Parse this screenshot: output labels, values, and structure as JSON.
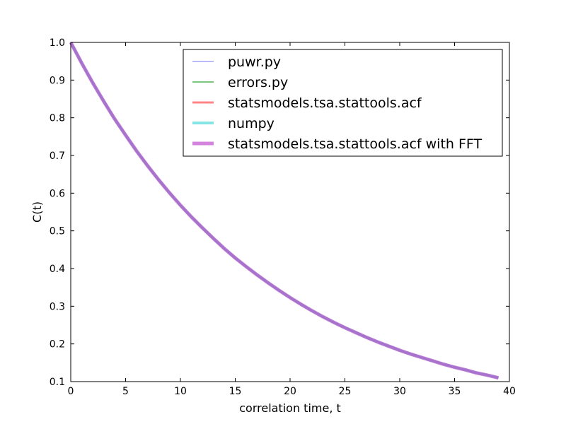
{
  "chart_data": {
    "type": "line",
    "title": "",
    "xlabel": "correlation time, t",
    "ylabel": "C(t)",
    "xlim": [
      0,
      40
    ],
    "ylim": [
      0.1,
      1.0
    ],
    "xticks": [
      "0",
      "5",
      "10",
      "15",
      "20",
      "25",
      "30",
      "35",
      "40"
    ],
    "yticks": [
      "0.1",
      "0.2",
      "0.3",
      "0.4",
      "0.5",
      "0.6",
      "0.7",
      "0.8",
      "0.9",
      "1.0"
    ],
    "grid": false,
    "legend_position": "top-right",
    "x": [
      0,
      1,
      2,
      3,
      4,
      5,
      6,
      7,
      8,
      9,
      10,
      11,
      12,
      13,
      14,
      15,
      16,
      17,
      18,
      19,
      20,
      21,
      22,
      23,
      24,
      25,
      26,
      27,
      28,
      29,
      30,
      31,
      32,
      33,
      34,
      35,
      36,
      37,
      38,
      39
    ],
    "series": [
      {
        "name": "puwr.py",
        "color": "#6666ee",
        "values": [
          1.0,
          0.945,
          0.893,
          0.844,
          0.797,
          0.754,
          0.712,
          0.673,
          0.636,
          0.601,
          0.568,
          0.537,
          0.508,
          0.48,
          0.453,
          0.428,
          0.405,
          0.383,
          0.362,
          0.342,
          0.323,
          0.305,
          0.288,
          0.272,
          0.257,
          0.243,
          0.23,
          0.217,
          0.205,
          0.194,
          0.183,
          0.173,
          0.164,
          0.155,
          0.146,
          0.138,
          0.131,
          0.123,
          0.117,
          0.11
        ]
      },
      {
        "name": "errors.py",
        "color": "#66bb66",
        "values": [
          1.0,
          0.945,
          0.893,
          0.844,
          0.797,
          0.754,
          0.712,
          0.673,
          0.636,
          0.601,
          0.568,
          0.537,
          0.508,
          0.48,
          0.453,
          0.428,
          0.405,
          0.383,
          0.362,
          0.342,
          0.323,
          0.305,
          0.288,
          0.272,
          0.257,
          0.243,
          0.23,
          0.217,
          0.205,
          0.194,
          0.183,
          0.173,
          0.164,
          0.155,
          0.146,
          0.138,
          0.131,
          0.123,
          0.117,
          0.11
        ]
      },
      {
        "name": "statsmodels.tsa.stattools.acf",
        "color": "#ff6666",
        "values": [
          1.0,
          0.945,
          0.893,
          0.844,
          0.797,
          0.754,
          0.712,
          0.673,
          0.636,
          0.601,
          0.568,
          0.537,
          0.508,
          0.48,
          0.453,
          0.428,
          0.405,
          0.383,
          0.362,
          0.342,
          0.323,
          0.305,
          0.288,
          0.272,
          0.257,
          0.243,
          0.23,
          0.217,
          0.205,
          0.194,
          0.183,
          0.173,
          0.164,
          0.155,
          0.146,
          0.138,
          0.131,
          0.123,
          0.117,
          0.11
        ]
      },
      {
        "name": "numpy",
        "color": "#66dddd",
        "values": [
          1.0,
          0.945,
          0.893,
          0.844,
          0.797,
          0.754,
          0.712,
          0.673,
          0.636,
          0.601,
          0.568,
          0.537,
          0.508,
          0.48,
          0.453,
          0.428,
          0.405,
          0.383,
          0.362,
          0.342,
          0.323,
          0.305,
          0.288,
          0.272,
          0.257,
          0.243,
          0.23,
          0.217,
          0.205,
          0.194,
          0.183,
          0.173,
          0.164,
          0.155,
          0.146,
          0.138,
          0.131,
          0.123,
          0.117,
          0.11
        ]
      },
      {
        "name": "statsmodels.tsa.stattools.acf with FFT",
        "color": "#bb44cc",
        "values": [
          1.0,
          0.945,
          0.893,
          0.844,
          0.797,
          0.754,
          0.712,
          0.673,
          0.636,
          0.601,
          0.568,
          0.537,
          0.508,
          0.48,
          0.453,
          0.428,
          0.405,
          0.383,
          0.362,
          0.342,
          0.323,
          0.305,
          0.288,
          0.272,
          0.257,
          0.243,
          0.23,
          0.217,
          0.205,
          0.194,
          0.183,
          0.173,
          0.164,
          0.155,
          0.146,
          0.138,
          0.131,
          0.123,
          0.117,
          0.11
        ]
      }
    ]
  }
}
